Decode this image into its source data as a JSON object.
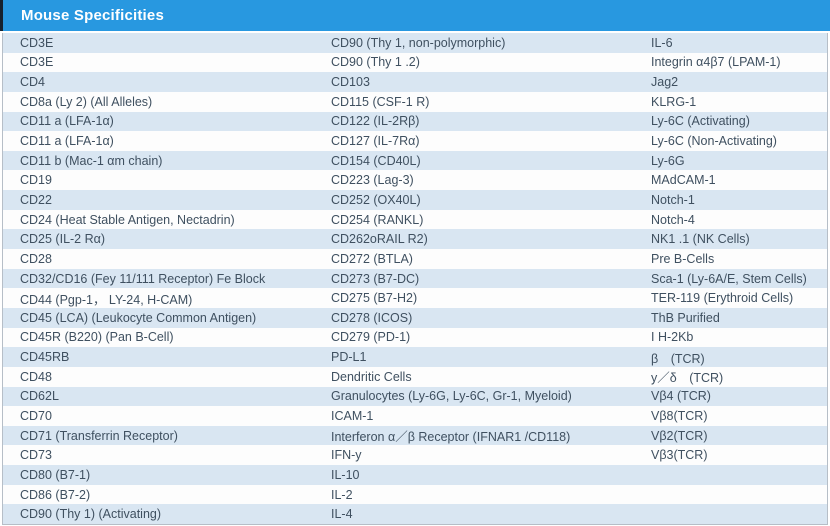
{
  "header": {
    "title": "Mouse Specificities"
  },
  "colors": {
    "header_bg": "#2898e0",
    "header_text": "#ffffff",
    "header_left_edge": "#16212d",
    "row_alt_bg": "#d9e6f2",
    "row_bg": "#fdfdfd",
    "text": "#3f5060",
    "border": "#b6bec7"
  },
  "table": {
    "rows": [
      {
        "c1": "CD3E",
        "c2": "CD90 (Thy 1, non-polymorphic)",
        "c3": "IL-6"
      },
      {
        "c1": "CD3E",
        "c2": "CD90 (Thy 1 .2)",
        "c3": "Integrin α4β7 (LPAM-1)"
      },
      {
        "c1": "CD4",
        "c2": "CD103",
        "c3": "Jag2"
      },
      {
        "c1": "CD8a (Ly 2) (All Alleles)",
        "c2": "CD115 (CSF-1 R)",
        "c3": "KLRG-1"
      },
      {
        "c1": "CD11 a (LFA-1α)",
        "c2": "CD122 (IL-2Rβ)",
        "c3": "Ly-6C (Activating)"
      },
      {
        "c1": "CD11 a (LFA-1α)",
        "c2": "CD127 (IL-7Rα)",
        "c3": "Ly-6C (Non-Activating)"
      },
      {
        "c1": "CD11 b (Mac-1 αm chain)",
        "c2": "CD154 (CD40L)",
        "c3": "Ly-6G"
      },
      {
        "c1": "CD19",
        "c2": "CD223 (Lag-3)",
        "c3": "MAdCAM-1"
      },
      {
        "c1": "CD22",
        "c2": "CD252 (OX40L)",
        "c3": "Notch-1"
      },
      {
        "c1": "CD24 (Heat Stable Antigen, Nectadrin)",
        "c2": "CD254 (RANKL)",
        "c3": "Notch-4"
      },
      {
        "c1": "CD25 (IL-2 Rα)",
        "c2": "CD262oRAIL R2)",
        "c3": "NK1 .1 (NK Cells)"
      },
      {
        "c1": "CD28",
        "c2": "CD272 (BTLA)",
        "c3": "Pre B-Cells"
      },
      {
        "c1": "CD32/CD16 (Fey 11/111 Receptor) Fe Block",
        "c2": "CD273 (B7-DC)",
        "c3": "Sca-1 (Ly-6A/E, Stem Cells)"
      },
      {
        "c1": "CD44 (Pgp-1， LY-24, H-CAM)",
        "c2": "CD275 (B7-H2)",
        "c3": "TER-119 (Erythroid Cells)"
      },
      {
        "c1": "CD45 (LCA) (Leukocyte Common Antigen)",
        "c2": "CD278 (ICOS)",
        "c3": "ThB Purified"
      },
      {
        "c1": "CD45R (B220) (Pan B-Cell)",
        "c2": "CD279 (PD-1)",
        "c3": "I H-2Kb"
      },
      {
        "c1": "CD45RB",
        "c2": "PD-L1",
        "c3": "β　(TCR)"
      },
      {
        "c1": "CD48",
        "c2": "Dendritic Cells",
        "c3": "y／δ　(TCR)"
      },
      {
        "c1": "CD62L",
        "c2": "Granulocytes (Ly-6G, Ly-6C, Gr-1, Myeloid)",
        "c3": "Vβ4 (TCR)"
      },
      {
        "c1": "CD70",
        "c2": "ICAM-1",
        "c3": "Vβ8(TCR)"
      },
      {
        "c1": "CD71 (Transferrin Receptor)",
        "c2": "Interferon α／β Receptor (IFNAR1 /CD118)",
        "c3": "Vβ2(TCR)"
      },
      {
        "c1": "CD73",
        "c2": "IFN-y",
        "c3": "Vβ3(TCR)"
      },
      {
        "c1": "CD80 (B7-1)",
        "c2": "IL-10",
        "c3": ""
      },
      {
        "c1": "CD86 (B7-2)",
        "c2": "IL-2",
        "c3": ""
      },
      {
        "c1": "CD90 (Thy 1) (Activating)",
        "c2": "IL-4",
        "c3": ""
      }
    ]
  }
}
